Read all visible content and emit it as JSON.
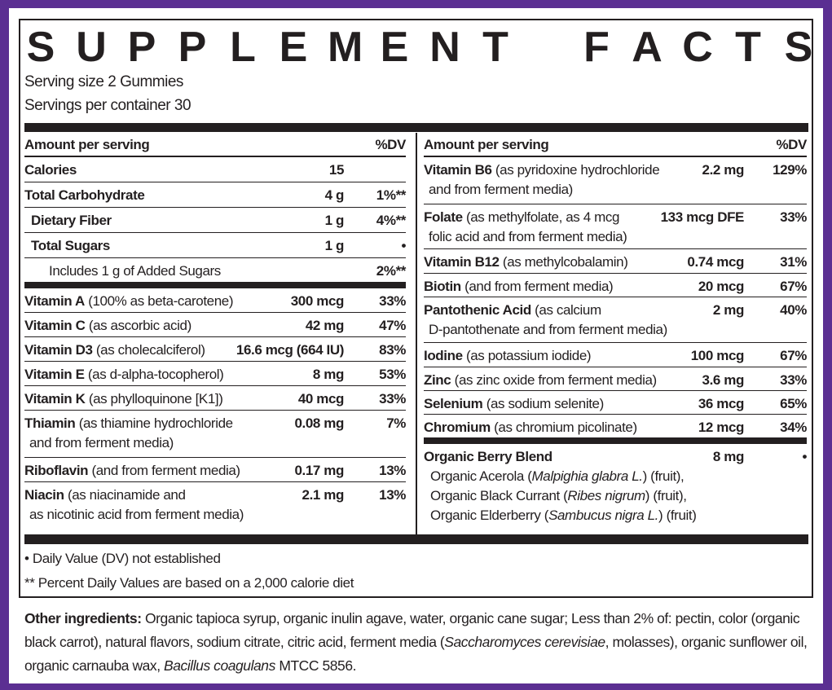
{
  "title": "SUPPLEMENT FACTS",
  "serving_size": "Serving size 2 Gummies",
  "servings_per_container": "Servings per container 30",
  "header": {
    "amount": "Amount per serving",
    "dv": "%DV"
  },
  "left_section1": [
    {
      "name": "Calories",
      "desc": "",
      "amount": "15",
      "dv": "",
      "indent": 0
    },
    {
      "name": "Total Carbohydrate",
      "desc": "",
      "amount": "4 g",
      "dv": "1%**",
      "indent": 0
    },
    {
      "name": "Dietary Fiber",
      "desc": "",
      "amount": "1 g",
      "dv": "4%**",
      "indent": 1
    },
    {
      "name": "Total Sugars",
      "desc": "",
      "amount": "1 g",
      "dv": "•",
      "indent": 1
    },
    {
      "name": "",
      "desc": "Includes 1 g of Added Sugars",
      "amount": "",
      "dv": "2%**",
      "indent": 2
    }
  ],
  "left_section2": [
    {
      "name": "Vitamin A",
      "desc": " (100% as beta-carotene)",
      "cont": "",
      "amount": "300 mcg",
      "dv": "33%"
    },
    {
      "name": "Vitamin C",
      "desc": " (as ascorbic acid)",
      "cont": "",
      "amount": "42 mg",
      "dv": "47%"
    },
    {
      "name": "Vitamin D3",
      "desc": " (as cholecalciferol)",
      "cont": "",
      "amount": "16.6 mcg (664 IU)",
      "dv": "83%"
    },
    {
      "name": "Vitamin E",
      "desc": " (as d-alpha-tocopherol)",
      "cont": "",
      "amount": "8 mg",
      "dv": "53%"
    },
    {
      "name": "Vitamin K",
      "desc": " (as phylloquinone [K1])",
      "cont": "",
      "amount": "40 mcg",
      "dv": "33%"
    },
    {
      "name": "Thiamin",
      "desc": " (as thiamine hydrochloride",
      "cont": "and from ferment media)",
      "amount": "0.08 mg",
      "dv": "7%"
    },
    {
      "name": "Riboflavin",
      "desc": " (and from ferment media)",
      "cont": "",
      "amount": "0.17 mg",
      "dv": "13%"
    },
    {
      "name": "Niacin",
      "desc": " (as niacinamide and",
      "cont": "as nicotinic acid from ferment media)",
      "amount": "2.1 mg",
      "dv": "13%"
    }
  ],
  "right_section1": [
    {
      "name": "Vitamin B6",
      "desc": " (as pyridoxine hydrochloride",
      "cont": "and from ferment media)",
      "amount": "2.2 mg",
      "dv": "129%"
    },
    {
      "name": "Folate",
      "desc": " (as methylfolate, as 4 mcg",
      "cont": "folic acid and from ferment media)",
      "amount": "133 mcg DFE",
      "dv": "33%"
    },
    {
      "name": "Vitamin B12",
      "desc": " (as methylcobalamin)",
      "cont": "",
      "amount": "0.74 mcg",
      "dv": "31%"
    },
    {
      "name": "Biotin",
      "desc": " (and from ferment media)",
      "cont": "",
      "amount": "20 mcg",
      "dv": "67%"
    },
    {
      "name": "Pantothenic Acid",
      "desc": " (as calcium",
      "cont": "D-pantothenate and from ferment media)",
      "amount": "2 mg",
      "dv": "40%"
    },
    {
      "name": "Iodine",
      "desc": " (as potassium iodide)",
      "cont": "",
      "amount": "100 mcg",
      "dv": "67%"
    },
    {
      "name": "Zinc",
      "desc": " (as zinc oxide from ferment media)",
      "cont": "",
      "amount": "3.6 mg",
      "dv": "33%"
    },
    {
      "name": "Selenium",
      "desc": " (as sodium selenite)",
      "cont": "",
      "amount": "36 mcg",
      "dv": "65%"
    },
    {
      "name": "Chromium",
      "desc": " (as chromium picolinate)",
      "cont": "",
      "amount": "12 mcg",
      "dv": "34%"
    }
  ],
  "blend": {
    "name": "Organic Berry Blend",
    "amount": "8 mg",
    "dv": "•",
    "lines": [
      [
        {
          "t": "Organic Acerola (",
          "i": false
        },
        {
          "t": "Malpighia glabra L.",
          "i": true
        },
        {
          "t": ") (fruit),",
          "i": false
        }
      ],
      [
        {
          "t": "Organic Black Currant (",
          "i": false
        },
        {
          "t": "Ribes nigrum",
          "i": true
        },
        {
          "t": ") (fruit),",
          "i": false
        }
      ],
      [
        {
          "t": "Organic Elderberry (",
          "i": false
        },
        {
          "t": "Sambucus nigra L.",
          "i": true
        },
        {
          "t": ") (fruit)",
          "i": false
        }
      ]
    ]
  },
  "footnotes": [
    "• Daily Value (DV) not established",
    "** Percent Daily Values are based on a 2,000 calorie diet"
  ],
  "other_ingredients": {
    "label": "Other ingredients:",
    "segments": [
      {
        "t": " Organic tapioca syrup, organic inulin agave, water, organic cane sugar; Less than 2% of: pectin, color (organic black carrot), natural flavors, sodium citrate, citric acid, ferment media (",
        "i": false
      },
      {
        "t": "Saccharomyces cerevisiae",
        "i": true
      },
      {
        "t": ", molasses), organic sunflower oil, organic carnauba wax, ",
        "i": false
      },
      {
        "t": "Bacillus coagulans",
        "i": true
      },
      {
        "t": " MTCC 5856.",
        "i": false
      }
    ]
  },
  "colors": {
    "frame": "#5b2f92",
    "ink": "#231f20"
  }
}
